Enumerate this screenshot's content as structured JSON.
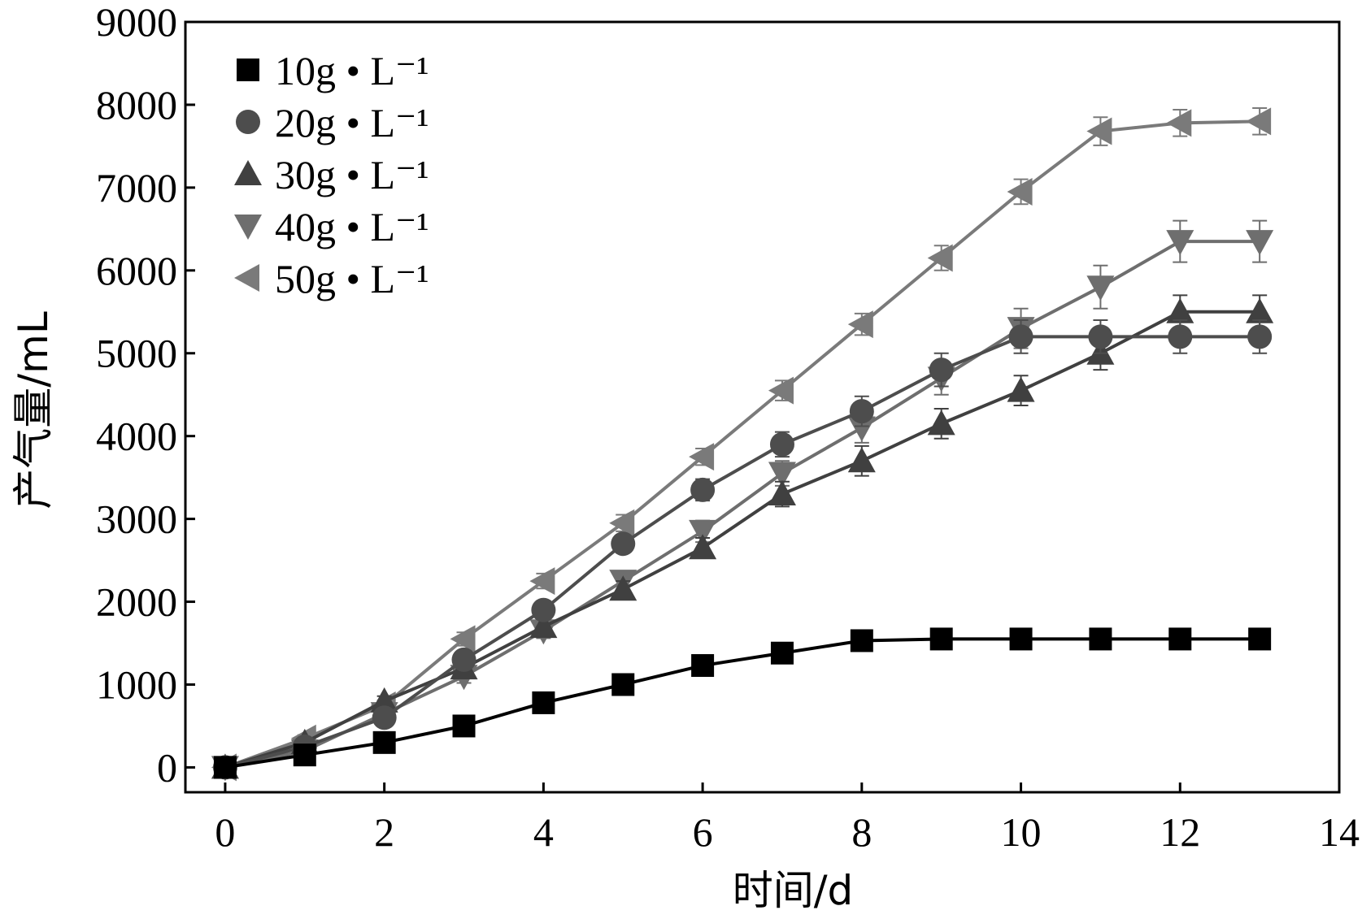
{
  "chart_data": {
    "type": "line",
    "title": "",
    "xlabel": "时间/d",
    "ylabel": "产气量/mL",
    "xlim": [
      -0.5,
      14
    ],
    "ylim": [
      -300,
      9000
    ],
    "xticks": [
      0,
      2,
      4,
      6,
      8,
      10,
      12,
      14
    ],
    "yticks": [
      0,
      1000,
      2000,
      3000,
      4000,
      5000,
      6000,
      7000,
      8000,
      9000
    ],
    "grid": false,
    "legend_position": "top-left",
    "x": [
      0,
      1,
      2,
      3,
      4,
      5,
      6,
      7,
      8,
      9,
      10,
      11,
      12,
      13
    ],
    "series": [
      {
        "name": "10g • L⁻¹",
        "marker": "square",
        "color": "#000000",
        "values": [
          0,
          150,
          300,
          500,
          780,
          1000,
          1230,
          1380,
          1530,
          1550,
          1550,
          1550,
          1550,
          1550
        ],
        "errors": [
          0,
          30,
          30,
          30,
          30,
          30,
          30,
          30,
          30,
          30,
          30,
          30,
          30,
          30
        ]
      },
      {
        "name": "20g • L⁻¹",
        "marker": "circle",
        "color": "#4d4d4d",
        "values": [
          0,
          250,
          600,
          1300,
          1900,
          2700,
          3350,
          3900,
          4300,
          4800,
          5200,
          5200,
          5200,
          5200
        ],
        "errors": [
          0,
          40,
          60,
          80,
          90,
          100,
          130,
          150,
          180,
          200,
          200,
          200,
          200,
          200
        ]
      },
      {
        "name": "30g • L⁻¹",
        "marker": "triangle-up",
        "color": "#404040",
        "values": [
          0,
          300,
          800,
          1200,
          1700,
          2150,
          2650,
          3300,
          3700,
          4150,
          4550,
          5000,
          5500,
          5500
        ],
        "errors": [
          0,
          40,
          60,
          80,
          90,
          100,
          120,
          150,
          180,
          180,
          180,
          200,
          200,
          200
        ]
      },
      {
        "name": "40g • L⁻¹",
        "marker": "triangle-down",
        "color": "#6e6e6e",
        "values": [
          0,
          200,
          650,
          1100,
          1650,
          2250,
          2850,
          3550,
          4100,
          4700,
          5300,
          5800,
          6350,
          6350
        ],
        "errors": [
          0,
          40,
          60,
          80,
          90,
          100,
          130,
          150,
          180,
          200,
          240,
          260,
          250,
          250
        ]
      },
      {
        "name": "50g • L⁻¹",
        "marker": "triangle-left",
        "color": "#7a7a7a",
        "values": [
          0,
          350,
          750,
          1550,
          2250,
          2950,
          3750,
          4550,
          5350,
          6150,
          6950,
          7680,
          7780,
          7800
        ],
        "errors": [
          0,
          40,
          60,
          80,
          90,
          100,
          100,
          120,
          130,
          150,
          150,
          170,
          160,
          160
        ]
      }
    ]
  }
}
